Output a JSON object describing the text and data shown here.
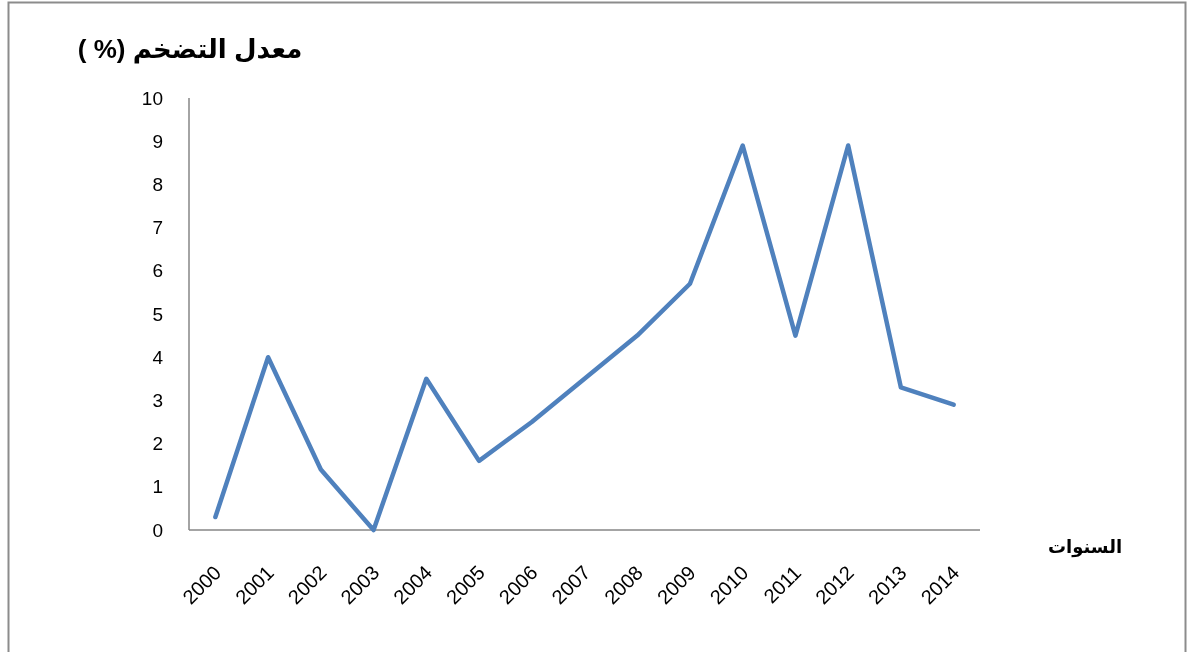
{
  "chart_data": {
    "type": "line",
    "title": "معدل التضخم (% )",
    "xlabel": "السنوات",
    "categories": [
      "2000",
      "2001",
      "2002",
      "2003",
      "2004",
      "2005",
      "2006",
      "2007",
      "2008",
      "2009",
      "2010",
      "2011",
      "2012",
      "2013",
      "2014"
    ],
    "series": [
      {
        "color": "#4f81bd",
        "values": [
          0.3,
          4.0,
          1.4,
          0,
          3.5,
          1.6,
          2.5,
          3.5,
          4.5,
          5.7,
          8.9,
          4.5,
          8.9,
          3.3,
          2.9
        ]
      }
    ],
    "ylim": [
      0,
      10
    ],
    "yticks": [
      0,
      1,
      2,
      3,
      4,
      5,
      6,
      7,
      8,
      9,
      10
    ]
  }
}
